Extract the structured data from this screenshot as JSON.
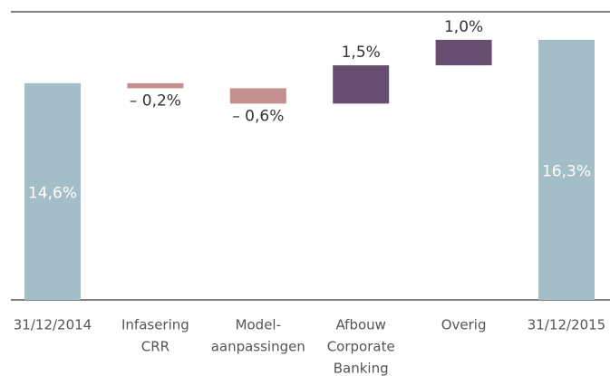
{
  "chart_data": {
    "type": "waterfall",
    "categories": [
      [
        "31/12/2014"
      ],
      [
        "Infasering",
        "CRR"
      ],
      [
        "Model-",
        "aanpassingen"
      ],
      [
        "Afbouw",
        "Corporate",
        "Banking"
      ],
      [
        "Overig"
      ],
      [
        "31/12/2015"
      ]
    ],
    "values": [
      14.6,
      -0.2,
      -0.6,
      1.5,
      1.0,
      16.3
    ],
    "value_labels": [
      "14,6%",
      "– 0,2%",
      "– 0,6%",
      "1,5%",
      "1,0%",
      "16,3%"
    ],
    "colors": {
      "total": "#a3bec7",
      "increase": "#674e70",
      "decrease": "#c4908f"
    },
    "ylim": [
      6.1,
      17.4
    ]
  }
}
